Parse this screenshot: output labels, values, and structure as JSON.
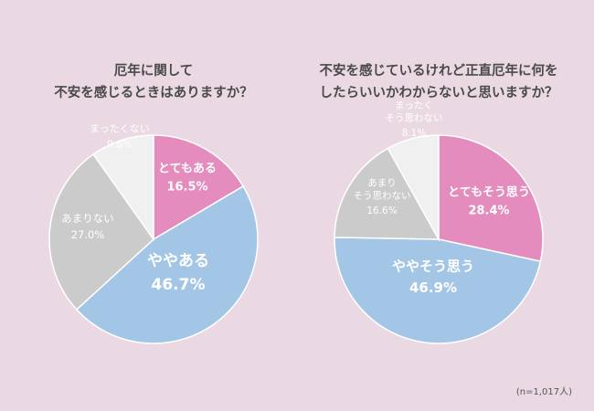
{
  "note": "(n=1,017人)",
  "chart_data": [
    {
      "type": "pie",
      "title_lines": [
        "厄年に関して",
        "不安を感じるときはありますか？"
      ],
      "slices": [
        {
          "label_lines": [
            "とてもある"
          ],
          "value": 16.5,
          "value_text": "16.5%",
          "color": "#e38cbd"
        },
        {
          "label_lines": [
            "ややある"
          ],
          "value": 46.7,
          "value_text": "46.7%",
          "color": "#a3c6e6"
        },
        {
          "label_lines": [
            "あまりない"
          ],
          "value": 27.0,
          "value_text": "27.0%",
          "color": "#cbcbcb"
        },
        {
          "label_lines": [
            "まったくない"
          ],
          "value": 9.8,
          "value_text": "9.8%",
          "color": "#f0f0f0"
        }
      ]
    },
    {
      "type": "pie",
      "title_lines": [
        "不安を感じているけれど正直厄年に何を",
        "したらいいかわからないと思いますか？"
      ],
      "slices": [
        {
          "label_lines": [
            "とてもそう思う"
          ],
          "value": 28.4,
          "value_text": "28.4%",
          "color": "#e38cbd"
        },
        {
          "label_lines": [
            "ややそう思う"
          ],
          "value": 46.9,
          "value_text": "46.9%",
          "color": "#a3c6e6"
        },
        {
          "label_lines": [
            "あまり",
            "そう思わない"
          ],
          "value": 16.6,
          "value_text": "16.6%",
          "color": "#cbcbcb"
        },
        {
          "label_lines": [
            "まったく",
            "そう思わない"
          ],
          "value": 8.1,
          "value_text": "8.1%",
          "color": "#f0f0f0"
        }
      ]
    }
  ]
}
